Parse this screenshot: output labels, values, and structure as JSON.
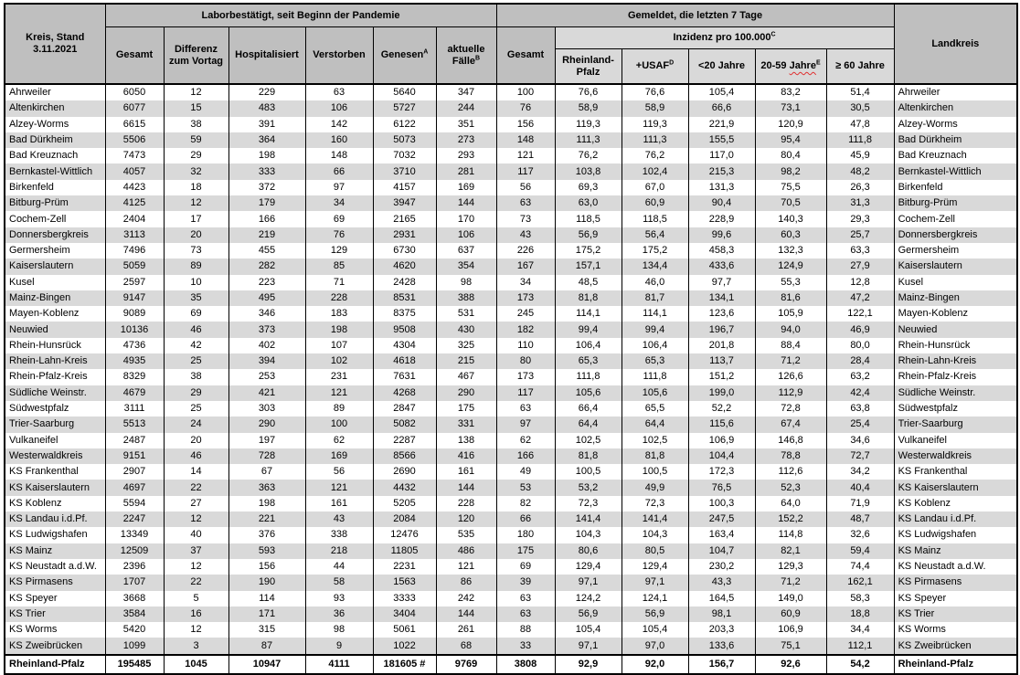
{
  "title": {
    "line1": "Kreis, Stand",
    "line2": "3.11.2021"
  },
  "header": {
    "group_labor": "Laborbestätigt, seit Beginn der Pandemie",
    "group_gemeldet": "Gemeldet, die letzten 7 Tage",
    "col_gesamt": "Gesamt",
    "col_differenz": "Differenz zum Vortag",
    "col_hospitalisiert": "Hospitalisiert",
    "col_verstorben": "Verstorben",
    "col_genesen": {
      "text": "Genesen",
      "sup": "A"
    },
    "col_aktuelle": {
      "text": "aktuelle Fälle",
      "sup": "B"
    },
    "col_gesamt7": "Gesamt",
    "group_inzidenz": {
      "text": "Inzidenz pro 100.000",
      "sup": "C"
    },
    "col_rlp": "Rheinland-Pfalz",
    "col_usaf": {
      "text": "+USAF",
      "sup": "D"
    },
    "col_u20": "<20 Jahre",
    "col_2059": {
      "pre": "20-59 ",
      "wavy": "Jahre",
      "sup": "E"
    },
    "col_60": "≥ 60 Jahre",
    "col_landkreis": "Landkreis"
  },
  "colors": {
    "header_dark": "#bfbfbf",
    "header_light": "#d9d9d9",
    "zebra": "#d9d9d9",
    "border": "#000000",
    "spellcheck_underline": "#e03030"
  },
  "table": {
    "rows": [
      [
        "Ahrweiler",
        "6050",
        "12",
        "229",
        "63",
        "5640",
        "347",
        "100",
        "76,6",
        "76,6",
        "105,4",
        "83,2",
        "51,4",
        "Ahrweiler"
      ],
      [
        "Altenkirchen",
        "6077",
        "15",
        "483",
        "106",
        "5727",
        "244",
        "76",
        "58,9",
        "58,9",
        "66,6",
        "73,1",
        "30,5",
        "Altenkirchen"
      ],
      [
        "Alzey-Worms",
        "6615",
        "38",
        "391",
        "142",
        "6122",
        "351",
        "156",
        "119,3",
        "119,3",
        "221,9",
        "120,9",
        "47,8",
        "Alzey-Worms"
      ],
      [
        "Bad Dürkheim",
        "5506",
        "59",
        "364",
        "160",
        "5073",
        "273",
        "148",
        "111,3",
        "111,3",
        "155,5",
        "95,4",
        "111,8",
        "Bad Dürkheim"
      ],
      [
        "Bad Kreuznach",
        "7473",
        "29",
        "198",
        "148",
        "7032",
        "293",
        "121",
        "76,2",
        "76,2",
        "117,0",
        "80,4",
        "45,9",
        "Bad Kreuznach"
      ],
      [
        "Bernkastel-Wittlich",
        "4057",
        "32",
        "333",
        "66",
        "3710",
        "281",
        "117",
        "103,8",
        "102,4",
        "215,3",
        "98,2",
        "48,2",
        "Bernkastel-Wittlich"
      ],
      [
        "Birkenfeld",
        "4423",
        "18",
        "372",
        "97",
        "4157",
        "169",
        "56",
        "69,3",
        "67,0",
        "131,3",
        "75,5",
        "26,3",
        "Birkenfeld"
      ],
      [
        "Bitburg-Prüm",
        "4125",
        "12",
        "179",
        "34",
        "3947",
        "144",
        "63",
        "63,0",
        "60,9",
        "90,4",
        "70,5",
        "31,3",
        "Bitburg-Prüm"
      ],
      [
        "Cochem-Zell",
        "2404",
        "17",
        "166",
        "69",
        "2165",
        "170",
        "73",
        "118,5",
        "118,5",
        "228,9",
        "140,3",
        "29,3",
        "Cochem-Zell"
      ],
      [
        "Donnersbergkreis",
        "3113",
        "20",
        "219",
        "76",
        "2931",
        "106",
        "43",
        "56,9",
        "56,4",
        "99,6",
        "60,3",
        "25,7",
        "Donnersbergkreis"
      ],
      [
        "Germersheim",
        "7496",
        "73",
        "455",
        "129",
        "6730",
        "637",
        "226",
        "175,2",
        "175,2",
        "458,3",
        "132,3",
        "63,3",
        "Germersheim"
      ],
      [
        "Kaiserslautern",
        "5059",
        "89",
        "282",
        "85",
        "4620",
        "354",
        "167",
        "157,1",
        "134,4",
        "433,6",
        "124,9",
        "27,9",
        "Kaiserslautern"
      ],
      [
        "Kusel",
        "2597",
        "10",
        "223",
        "71",
        "2428",
        "98",
        "34",
        "48,5",
        "46,0",
        "97,7",
        "55,3",
        "12,8",
        "Kusel"
      ],
      [
        "Mainz-Bingen",
        "9147",
        "35",
        "495",
        "228",
        "8531",
        "388",
        "173",
        "81,8",
        "81,7",
        "134,1",
        "81,6",
        "47,2",
        "Mainz-Bingen"
      ],
      [
        "Mayen-Koblenz",
        "9089",
        "69",
        "346",
        "183",
        "8375",
        "531",
        "245",
        "114,1",
        "114,1",
        "123,6",
        "105,9",
        "122,1",
        "Mayen-Koblenz"
      ],
      [
        "Neuwied",
        "10136",
        "46",
        "373",
        "198",
        "9508",
        "430",
        "182",
        "99,4",
        "99,4",
        "196,7",
        "94,0",
        "46,9",
        "Neuwied"
      ],
      [
        "Rhein-Hunsrück",
        "4736",
        "42",
        "402",
        "107",
        "4304",
        "325",
        "110",
        "106,4",
        "106,4",
        "201,8",
        "88,4",
        "80,0",
        "Rhein-Hunsrück"
      ],
      [
        "Rhein-Lahn-Kreis",
        "4935",
        "25",
        "394",
        "102",
        "4618",
        "215",
        "80",
        "65,3",
        "65,3",
        "113,7",
        "71,2",
        "28,4",
        "Rhein-Lahn-Kreis"
      ],
      [
        "Rhein-Pfalz-Kreis",
        "8329",
        "38",
        "253",
        "231",
        "7631",
        "467",
        "173",
        "111,8",
        "111,8",
        "151,2",
        "126,6",
        "63,2",
        "Rhein-Pfalz-Kreis"
      ],
      [
        "Südliche Weinstr.",
        "4679",
        "29",
        "421",
        "121",
        "4268",
        "290",
        "117",
        "105,6",
        "105,6",
        "199,0",
        "112,9",
        "42,4",
        "Südliche Weinstr."
      ],
      [
        "Südwestpfalz",
        "3111",
        "25",
        "303",
        "89",
        "2847",
        "175",
        "63",
        "66,4",
        "65,5",
        "52,2",
        "72,8",
        "63,8",
        "Südwestpfalz"
      ],
      [
        "Trier-Saarburg",
        "5513",
        "24",
        "290",
        "100",
        "5082",
        "331",
        "97",
        "64,4",
        "64,4",
        "115,6",
        "67,4",
        "25,4",
        "Trier-Saarburg"
      ],
      [
        "Vulkaneifel",
        "2487",
        "20",
        "197",
        "62",
        "2287",
        "138",
        "62",
        "102,5",
        "102,5",
        "106,9",
        "146,8",
        "34,6",
        "Vulkaneifel"
      ],
      [
        "Westerwaldkreis",
        "9151",
        "46",
        "728",
        "169",
        "8566",
        "416",
        "166",
        "81,8",
        "81,8",
        "104,4",
        "78,8",
        "72,7",
        "Westerwaldkreis"
      ],
      [
        "KS Frankenthal",
        "2907",
        "14",
        "67",
        "56",
        "2690",
        "161",
        "49",
        "100,5",
        "100,5",
        "172,3",
        "112,6",
        "34,2",
        "KS Frankenthal"
      ],
      [
        "KS Kaiserslautern",
        "4697",
        "22",
        "363",
        "121",
        "4432",
        "144",
        "53",
        "53,2",
        "49,9",
        "76,5",
        "52,3",
        "40,4",
        "KS Kaiserslautern"
      ],
      [
        "KS Koblenz",
        "5594",
        "27",
        "198",
        "161",
        "5205",
        "228",
        "82",
        "72,3",
        "72,3",
        "100,3",
        "64,0",
        "71,9",
        "KS Koblenz"
      ],
      [
        "KS Landau i.d.Pf.",
        "2247",
        "12",
        "221",
        "43",
        "2084",
        "120",
        "66",
        "141,4",
        "141,4",
        "247,5",
        "152,2",
        "48,7",
        "KS Landau i.d.Pf."
      ],
      [
        "KS Ludwigshafen",
        "13349",
        "40",
        "376",
        "338",
        "12476",
        "535",
        "180",
        "104,3",
        "104,3",
        "163,4",
        "114,8",
        "32,6",
        "KS Ludwigshafen"
      ],
      [
        "KS Mainz",
        "12509",
        "37",
        "593",
        "218",
        "11805",
        "486",
        "175",
        "80,6",
        "80,5",
        "104,7",
        "82,1",
        "59,4",
        "KS Mainz"
      ],
      [
        "KS Neustadt a.d.W.",
        "2396",
        "12",
        "156",
        "44",
        "2231",
        "121",
        "69",
        "129,4",
        "129,4",
        "230,2",
        "129,3",
        "74,4",
        "KS Neustadt a.d.W."
      ],
      [
        "KS Pirmasens",
        "1707",
        "22",
        "190",
        "58",
        "1563",
        "86",
        "39",
        "97,1",
        "97,1",
        "43,3",
        "71,2",
        "162,1",
        "KS Pirmasens"
      ],
      [
        "KS Speyer",
        "3668",
        "5",
        "114",
        "93",
        "3333",
        "242",
        "63",
        "124,2",
        "124,1",
        "164,5",
        "149,0",
        "58,3",
        "KS Speyer"
      ],
      [
        "KS Trier",
        "3584",
        "16",
        "171",
        "36",
        "3404",
        "144",
        "63",
        "56,9",
        "56,9",
        "98,1",
        "60,9",
        "18,8",
        "KS Trier"
      ],
      [
        "KS Worms",
        "5420",
        "12",
        "315",
        "98",
        "5061",
        "261",
        "88",
        "105,4",
        "105,4",
        "203,3",
        "106,9",
        "34,4",
        "KS Worms"
      ],
      [
        "KS Zweibrücken",
        "1099",
        "3",
        "87",
        "9",
        "1022",
        "68",
        "33",
        "97,1",
        "97,0",
        "133,6",
        "75,1",
        "112,1",
        "KS Zweibrücken"
      ]
    ],
    "totals": [
      "Rheinland-Pfalz",
      "195485",
      "1045",
      "10947",
      "4111",
      "181605 #",
      "9769",
      "3808",
      "92,9",
      "92,0",
      "156,7",
      "92,6",
      "54,2",
      "Rheinland-Pfalz"
    ]
  }
}
